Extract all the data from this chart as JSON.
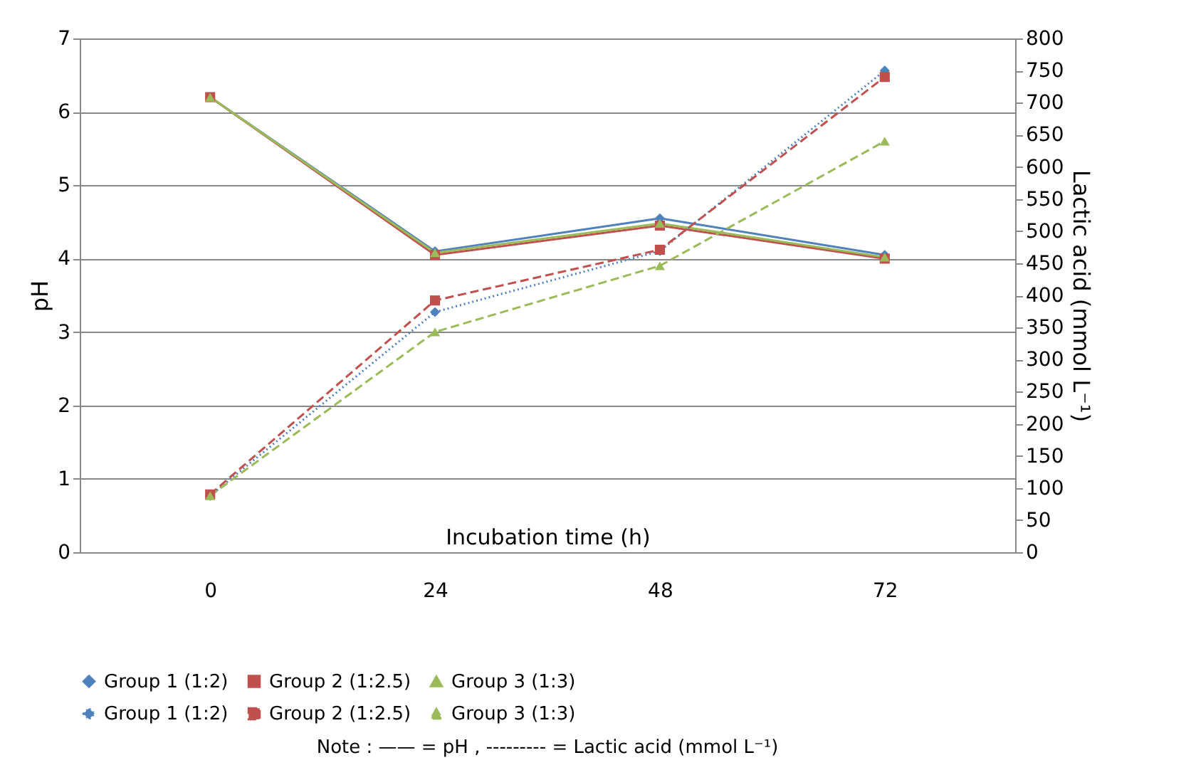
{
  "chart_data": {
    "type": "line",
    "xlabel": "Incubation time (h)",
    "ylabel": "pH",
    "y2label": "Lactic acid (mmol L⁻¹)",
    "categories": [
      "0",
      "24",
      "48",
      "72"
    ],
    "series": [
      {
        "name": "Group 1  (1:2)",
        "color": "#4f81bd",
        "marker": "diamond",
        "line_style": "solid",
        "values": [
          6.2,
          4.1,
          4.55,
          4.05
        ]
      },
      {
        "name": "Group 2  (1:2.5)",
        "color": "#c0504d",
        "marker": "square",
        "line_style": "solid",
        "values": [
          6.2,
          4.05,
          4.45,
          4.0
        ]
      },
      {
        "name": "Group 3  (1:3)",
        "color": "#9bbb59",
        "marker": "triangle",
        "line_style": "solid",
        "values": [
          6.2,
          4.08,
          4.48,
          4.02
        ]
      },
      {
        "name": "Group 1  (1:2)",
        "color": "#4f81bd",
        "marker": "diamond",
        "line_style": "dotted",
        "axis": "y2",
        "values": [
          88,
          374,
          469,
          750
        ]
      },
      {
        "name": "Group 2  (1:2.5)",
        "color": "#c0504d",
        "marker": "square",
        "line_style": "dashed",
        "axis": "y2",
        "values": [
          90,
          392,
          471,
          740
        ]
      },
      {
        "name": "Group 3  (1:3)",
        "color": "#9bbb59",
        "marker": "triangle",
        "line_style": "dashed",
        "axis": "y2",
        "values": [
          88,
          343,
          446,
          640
        ]
      }
    ],
    "ylim": [
      0,
      7
    ],
    "yticks": [
      0,
      1,
      2,
      3,
      4,
      5,
      6,
      7
    ],
    "y2lim": [
      0,
      800
    ],
    "y2ticks": [
      0,
      50,
      100,
      150,
      200,
      250,
      300,
      350,
      400,
      450,
      500,
      550,
      600,
      650,
      700,
      750,
      800
    ],
    "grid": "y",
    "legend": "bottom",
    "annotations": [
      "Note :  ——  = pH ,  ---------  = Lactic acid  (mmol L⁻¹)"
    ]
  }
}
